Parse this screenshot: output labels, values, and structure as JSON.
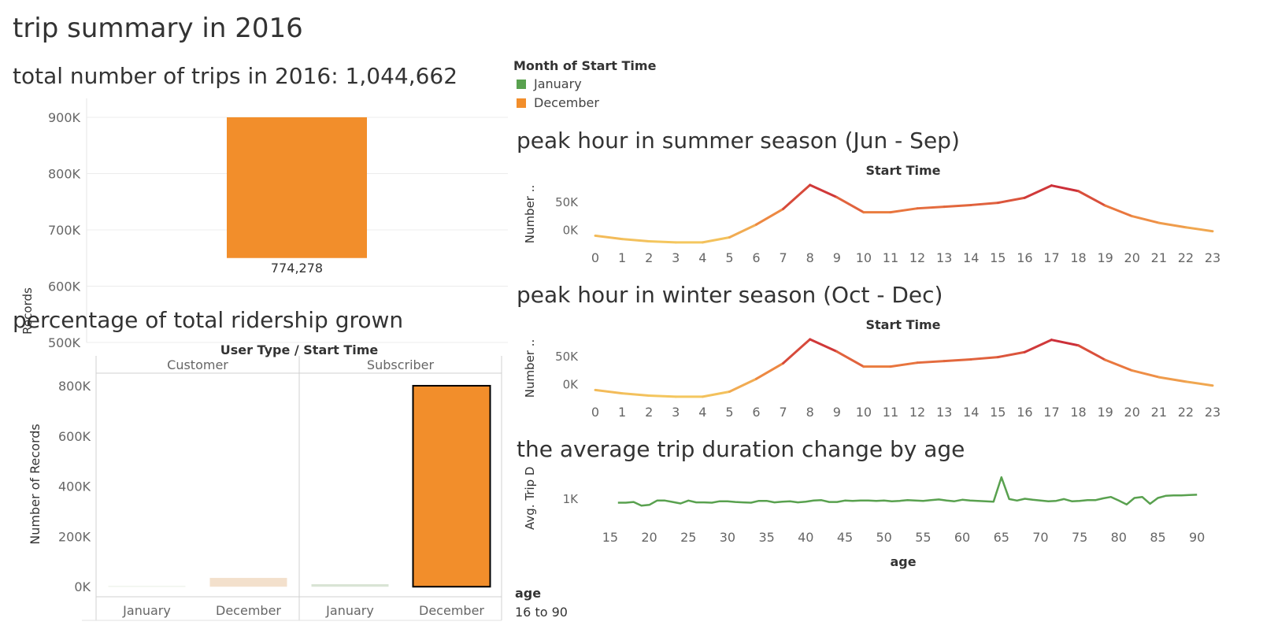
{
  "dashboard": {
    "title": "trip summary in 2016"
  },
  "legend": {
    "title": "Month of Start Time",
    "items": [
      {
        "label": "January",
        "color": "#59A14F"
      },
      {
        "label": "December",
        "color": "#F28E2B"
      }
    ]
  },
  "filter": {
    "label": "age",
    "value": "16 to 90"
  },
  "chart_data": [
    {
      "id": "total_trips",
      "type": "bar",
      "title": "total number of trips in 2016: 1,044,662",
      "ylabel": "Records",
      "ylim": [
        500000,
        900000
      ],
      "yticks": [
        500000,
        600000,
        700000,
        800000,
        900000
      ],
      "ytick_labels": [
        "500K",
        "600K",
        "700K",
        "800K",
        "900K"
      ],
      "series": [
        {
          "category": "December",
          "value": 774278,
          "label": "774,278",
          "color": "#F28E2B"
        }
      ],
      "grid": true
    },
    {
      "id": "ridership_growth",
      "type": "bar",
      "title": "percentage of total ridership grown",
      "column_header": "User Type  /  Start Time",
      "panes": [
        "Customer",
        "Subscriber"
      ],
      "categories": [
        "January",
        "December"
      ],
      "ylabel": "Number of Records",
      "ylim": [
        -40000,
        850000
      ],
      "yticks": [
        0,
        200000,
        400000,
        600000,
        800000
      ],
      "ytick_labels": [
        "0K",
        "200K",
        "400K",
        "600K",
        "800K"
      ],
      "series": [
        {
          "pane": "Customer",
          "category": "January",
          "value": 2000,
          "color": "#DCE6D4"
        },
        {
          "pane": "Customer",
          "category": "December",
          "value": 35000,
          "color": "#F3E0CC"
        },
        {
          "pane": "Subscriber",
          "category": "January",
          "value": 10000,
          "color": "#D8E4D5"
        },
        {
          "pane": "Subscriber",
          "category": "December",
          "value": 800000,
          "color": "#F28E2B"
        }
      ],
      "grid": false
    },
    {
      "id": "summer_peak",
      "type": "line",
      "title": "peak hour in summer season (Jun - Sep)",
      "column_header": "Start Time",
      "ylabel": "Number ..",
      "x": [
        0,
        1,
        2,
        3,
        4,
        5,
        6,
        7,
        8,
        9,
        10,
        11,
        12,
        13,
        14,
        15,
        16,
        17,
        18,
        19,
        20,
        21,
        22,
        23
      ],
      "y": [
        -10000,
        -16000,
        -20000,
        -22000,
        -22000,
        -13000,
        10000,
        38000,
        81000,
        59000,
        32000,
        32000,
        39000,
        42000,
        45000,
        49000,
        58000,
        80000,
        70000,
        44000,
        25000,
        13000,
        5000,
        -2000
      ],
      "yticks": [
        0,
        50000
      ],
      "ytick_labels": [
        "0K",
        "50K"
      ],
      "ylim": [
        -25000,
        88000
      ]
    },
    {
      "id": "winter_peak",
      "type": "line",
      "title": "peak hour in winter season (Oct - Dec)",
      "column_header": "Start Time",
      "ylabel": "Number ..",
      "x": [
        0,
        1,
        2,
        3,
        4,
        5,
        6,
        7,
        8,
        9,
        10,
        11,
        12,
        13,
        14,
        15,
        16,
        17,
        18,
        19,
        20,
        21,
        22,
        23
      ],
      "y": [
        -10000,
        -16000,
        -20000,
        -22000,
        -22000,
        -13000,
        10000,
        38000,
        81000,
        59000,
        32000,
        32000,
        39000,
        42000,
        45000,
        49000,
        58000,
        80000,
        70000,
        44000,
        25000,
        13000,
        5000,
        -2000
      ],
      "yticks": [
        0,
        50000
      ],
      "ytick_labels": [
        "0K",
        "50K"
      ],
      "ylim": [
        -25000,
        88000
      ]
    },
    {
      "id": "duration_by_age",
      "type": "line",
      "title": "the average trip duration change by age",
      "xlabel": "age",
      "ylabel": "Avg. Trip D..",
      "xticks": [
        15,
        20,
        25,
        30,
        35,
        40,
        45,
        50,
        55,
        60,
        65,
        70,
        75,
        80,
        85,
        90
      ],
      "yticks": [
        1000
      ],
      "ytick_labels": [
        "1K"
      ],
      "xlim": [
        13,
        93
      ],
      "ylim": [
        500,
        1800
      ],
      "x": [
        16,
        17,
        18,
        19,
        20,
        21,
        22,
        23,
        24,
        25,
        26,
        27,
        28,
        29,
        30,
        31,
        32,
        33,
        34,
        35,
        36,
        37,
        38,
        39,
        40,
        41,
        42,
        43,
        44,
        45,
        46,
        47,
        48,
        49,
        50,
        51,
        52,
        53,
        54,
        55,
        56,
        57,
        58,
        59,
        60,
        61,
        62,
        63,
        64,
        65,
        66,
        67,
        68,
        69,
        70,
        71,
        72,
        73,
        74,
        75,
        76,
        77,
        78,
        79,
        80,
        81,
        82,
        83,
        84,
        85,
        86,
        87,
        88,
        89,
        90
      ],
      "y": [
        900,
        900,
        920,
        820,
        840,
        960,
        960,
        920,
        880,
        960,
        910,
        910,
        900,
        940,
        940,
        920,
        910,
        900,
        950,
        950,
        910,
        930,
        940,
        910,
        930,
        960,
        970,
        920,
        920,
        960,
        950,
        960,
        960,
        950,
        960,
        940,
        950,
        970,
        960,
        950,
        970,
        990,
        960,
        940,
        980,
        960,
        950,
        940,
        930,
        1600,
        1000,
        960,
        1010,
        980,
        960,
        940,
        950,
        1000,
        940,
        950,
        970,
        970,
        1020,
        1060,
        960,
        850,
        1030,
        1060,
        870,
        1030,
        1090,
        1100,
        1100,
        1110,
        1120
      ],
      "color": "#59A14F"
    }
  ]
}
